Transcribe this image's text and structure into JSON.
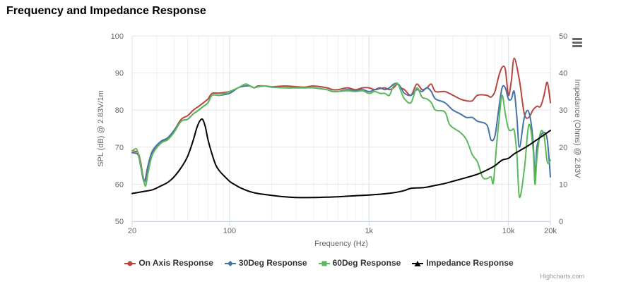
{
  "title": "Frequency and Impedance Response",
  "credits": "Highcharts.com",
  "menu_icon": "hamburger-icon",
  "chart_data": {
    "type": "line",
    "title": "Frequency and Impedance Response",
    "xlabel": "Frequency (Hz)",
    "x_scale": "log",
    "xlim": [
      20,
      20000
    ],
    "x_ticks": [
      20,
      100,
      1000,
      10000,
      20000
    ],
    "x_tick_labels": [
      "20",
      "100",
      "1k",
      "10k",
      "20k"
    ],
    "ylabel": "SPL (dB) @ 2.83V/1m",
    "ylim": [
      50,
      100
    ],
    "y_ticks": [
      50,
      60,
      70,
      80,
      90,
      100
    ],
    "y2label": "Impedance (Ohms) @ 2.83V",
    "y2lim": [
      0,
      50
    ],
    "y2_ticks": [
      0,
      10,
      20,
      30,
      40,
      50
    ],
    "grid": true,
    "legend_position": "bottom-center",
    "series": [
      {
        "name": "On Axis Response",
        "color": "#b5473f",
        "axis": "left",
        "marker": "circle",
        "points": [
          [
            20,
            69
          ],
          [
            22,
            68.5
          ],
          [
            23,
            66
          ],
          [
            24.5,
            61
          ],
          [
            26,
            65
          ],
          [
            28,
            68.5
          ],
          [
            32,
            71
          ],
          [
            36,
            72.5
          ],
          [
            40,
            74.5
          ],
          [
            45,
            77.5
          ],
          [
            50,
            78.5
          ],
          [
            55,
            80
          ],
          [
            60,
            81
          ],
          [
            65,
            82
          ],
          [
            70,
            83
          ],
          [
            75,
            84.5
          ],
          [
            85,
            84.6
          ],
          [
            100,
            85
          ],
          [
            115,
            86
          ],
          [
            130,
            87
          ],
          [
            140,
            86.5
          ],
          [
            150,
            86
          ],
          [
            160,
            86.5
          ],
          [
            180,
            86.5
          ],
          [
            200,
            86.3
          ],
          [
            250,
            86.5
          ],
          [
            300,
            86.3
          ],
          [
            350,
            86.2
          ],
          [
            400,
            86.5
          ],
          [
            500,
            86
          ],
          [
            550,
            85.5
          ],
          [
            600,
            85.5
          ],
          [
            700,
            86
          ],
          [
            800,
            85.5
          ],
          [
            900,
            86
          ],
          [
            1000,
            86
          ],
          [
            1100,
            85.5
          ],
          [
            1200,
            85.8
          ],
          [
            1300,
            86
          ],
          [
            1400,
            85.5
          ],
          [
            1500,
            86
          ],
          [
            1600,
            87
          ],
          [
            1700,
            86
          ],
          [
            1800,
            85.5
          ],
          [
            2000,
            84
          ],
          [
            2200,
            87
          ],
          [
            2400,
            85.5
          ],
          [
            2600,
            86
          ],
          [
            2800,
            87
          ],
          [
            3000,
            85
          ],
          [
            3500,
            85
          ],
          [
            4000,
            84
          ],
          [
            4500,
            83
          ],
          [
            5000,
            82.5
          ],
          [
            5500,
            82.5
          ],
          [
            6000,
            84
          ],
          [
            7000,
            84
          ],
          [
            7500,
            83.5
          ],
          [
            8000,
            85
          ],
          [
            8500,
            89
          ],
          [
            9000,
            91.5
          ],
          [
            9500,
            91
          ],
          [
            10000,
            84
          ],
          [
            10500,
            88
          ],
          [
            11000,
            94
          ],
          [
            12000,
            88
          ],
          [
            13000,
            79
          ],
          [
            14000,
            78
          ],
          [
            15000,
            80
          ],
          [
            16000,
            81
          ],
          [
            17000,
            81
          ],
          [
            18000,
            84
          ],
          [
            19000,
            87.5
          ],
          [
            20000,
            82
          ]
        ]
      },
      {
        "name": "30Deg Response",
        "color": "#4572a7",
        "axis": "left",
        "marker": "diamond",
        "points": [
          [
            20,
            68.5
          ],
          [
            22,
            68
          ],
          [
            23,
            65
          ],
          [
            24.5,
            60.5
          ],
          [
            26,
            65
          ],
          [
            28,
            69
          ],
          [
            32,
            71.5
          ],
          [
            36,
            72.5
          ],
          [
            40,
            74.5
          ],
          [
            45,
            77
          ],
          [
            50,
            77.5
          ],
          [
            55,
            79
          ],
          [
            60,
            80
          ],
          [
            65,
            81
          ],
          [
            70,
            82
          ],
          [
            75,
            84
          ],
          [
            85,
            84
          ],
          [
            100,
            84.5
          ],
          [
            115,
            86
          ],
          [
            130,
            86.5
          ],
          [
            140,
            86.5
          ],
          [
            150,
            86
          ],
          [
            160,
            86.3
          ],
          [
            180,
            86.5
          ],
          [
            200,
            86.2
          ],
          [
            250,
            86
          ],
          [
            300,
            86
          ],
          [
            350,
            86
          ],
          [
            400,
            86
          ],
          [
            500,
            85.5
          ],
          [
            550,
            85
          ],
          [
            600,
            85
          ],
          [
            700,
            85.5
          ],
          [
            800,
            85.2
          ],
          [
            900,
            85.5
          ],
          [
            1000,
            85
          ],
          [
            1100,
            85.5
          ],
          [
            1200,
            86
          ],
          [
            1300,
            85.5
          ],
          [
            1400,
            86
          ],
          [
            1500,
            87
          ],
          [
            1600,
            87.2
          ],
          [
            1700,
            86
          ],
          [
            1800,
            84.5
          ],
          [
            2000,
            84
          ],
          [
            2200,
            85.5
          ],
          [
            2400,
            85
          ],
          [
            2600,
            86
          ],
          [
            2800,
            85
          ],
          [
            3000,
            83
          ],
          [
            3500,
            82
          ],
          [
            4000,
            80
          ],
          [
            4500,
            79
          ],
          [
            5000,
            78
          ],
          [
            5500,
            78
          ],
          [
            6000,
            77
          ],
          [
            7000,
            76
          ],
          [
            7500,
            72
          ],
          [
            8000,
            73
          ],
          [
            8500,
            80
          ],
          [
            9000,
            86
          ],
          [
            9500,
            86
          ],
          [
            10000,
            83
          ],
          [
            10500,
            83
          ],
          [
            11000,
            85
          ],
          [
            11500,
            78
          ],
          [
            12000,
            70
          ],
          [
            13000,
            78
          ],
          [
            14000,
            79.5
          ],
          [
            15000,
            72
          ],
          [
            15500,
            62
          ],
          [
            16000,
            70
          ],
          [
            17000,
            73
          ],
          [
            18000,
            74
          ],
          [
            19000,
            72
          ],
          [
            20000,
            62
          ]
        ]
      },
      {
        "name": "60Deg Response",
        "color": "#5cb85c",
        "axis": "left",
        "marker": "square",
        "points": [
          [
            20,
            69
          ],
          [
            21.5,
            69.5
          ],
          [
            22.5,
            67
          ],
          [
            24,
            62
          ],
          [
            25,
            59.5
          ],
          [
            26,
            63
          ],
          [
            28,
            68
          ],
          [
            32,
            71
          ],
          [
            36,
            72
          ],
          [
            40,
            74
          ],
          [
            45,
            77
          ],
          [
            50,
            77.5
          ],
          [
            55,
            79
          ],
          [
            60,
            80
          ],
          [
            65,
            81
          ],
          [
            70,
            82
          ],
          [
            75,
            84
          ],
          [
            85,
            84
          ],
          [
            100,
            85
          ],
          [
            115,
            86
          ],
          [
            130,
            87
          ],
          [
            140,
            86.5
          ],
          [
            150,
            86
          ],
          [
            160,
            86.3
          ],
          [
            180,
            86.5
          ],
          [
            200,
            86.3
          ],
          [
            250,
            86
          ],
          [
            300,
            86
          ],
          [
            350,
            86
          ],
          [
            400,
            86
          ],
          [
            500,
            85.5
          ],
          [
            550,
            85
          ],
          [
            600,
            85
          ],
          [
            700,
            85.2
          ],
          [
            800,
            85
          ],
          [
            900,
            85.2
          ],
          [
            1000,
            84.5
          ],
          [
            1100,
            85
          ],
          [
            1200,
            84.5
          ],
          [
            1300,
            84.5
          ],
          [
            1400,
            84
          ],
          [
            1500,
            86.5
          ],
          [
            1600,
            87.2
          ],
          [
            1700,
            85
          ],
          [
            1800,
            83
          ],
          [
            2000,
            82
          ],
          [
            2200,
            86
          ],
          [
            2400,
            83.5
          ],
          [
            2600,
            83
          ],
          [
            2800,
            82
          ],
          [
            3000,
            80
          ],
          [
            3500,
            79.5
          ],
          [
            3800,
            76
          ],
          [
            4500,
            74
          ],
          [
            5000,
            72
          ],
          [
            5500,
            68
          ],
          [
            6000,
            66
          ],
          [
            6500,
            62
          ],
          [
            7000,
            61.5
          ],
          [
            7500,
            62
          ],
          [
            7800,
            60.5
          ],
          [
            8200,
            70
          ],
          [
            8600,
            78
          ],
          [
            9000,
            84
          ],
          [
            9500,
            79
          ],
          [
            10000,
            75
          ],
          [
            10500,
            74.5
          ],
          [
            11000,
            74.5
          ],
          [
            11500,
            68
          ],
          [
            12000,
            56.5
          ],
          [
            13000,
            64
          ],
          [
            14000,
            76
          ],
          [
            15000,
            70
          ],
          [
            15500,
            60
          ],
          [
            16000,
            67
          ],
          [
            17000,
            74
          ],
          [
            18000,
            73
          ],
          [
            19000,
            66
          ],
          [
            20000,
            66.5
          ]
        ]
      },
      {
        "name": "Impedance Response",
        "color": "#000000",
        "axis": "right",
        "marker": "triangle",
        "points": [
          [
            20,
            7.5
          ],
          [
            24,
            8
          ],
          [
            28,
            8.5
          ],
          [
            32,
            9.5
          ],
          [
            36,
            10.5
          ],
          [
            40,
            12
          ],
          [
            45,
            14.5
          ],
          [
            50,
            17.5
          ],
          [
            55,
            22
          ],
          [
            58,
            25
          ],
          [
            61,
            27
          ],
          [
            64,
            27.5
          ],
          [
            67,
            25.5
          ],
          [
            70,
            22
          ],
          [
            75,
            18
          ],
          [
            80,
            15
          ],
          [
            85,
            13.5
          ],
          [
            90,
            12.5
          ],
          [
            100,
            10.8
          ],
          [
            110,
            9.8
          ],
          [
            120,
            9
          ],
          [
            140,
            8
          ],
          [
            160,
            7.5
          ],
          [
            200,
            7
          ],
          [
            250,
            6.6
          ],
          [
            300,
            6.4
          ],
          [
            400,
            6.4
          ],
          [
            500,
            6.5
          ],
          [
            600,
            6.6
          ],
          [
            800,
            6.9
          ],
          [
            1000,
            7.1
          ],
          [
            1200,
            7.3
          ],
          [
            1500,
            7.7
          ],
          [
            1800,
            8.3
          ],
          [
            2000,
            8.9
          ],
          [
            2500,
            9.1
          ],
          [
            3000,
            9.7
          ],
          [
            3500,
            10.2
          ],
          [
            4000,
            10.8
          ],
          [
            5000,
            11.8
          ],
          [
            6000,
            12.7
          ],
          [
            7000,
            13.8
          ],
          [
            8000,
            15
          ],
          [
            9000,
            16.5
          ],
          [
            10000,
            17
          ],
          [
            11000,
            18.2
          ],
          [
            12000,
            19
          ],
          [
            14000,
            20.5
          ],
          [
            16000,
            22
          ],
          [
            18000,
            23.3
          ],
          [
            20000,
            24.5
          ]
        ]
      }
    ]
  }
}
